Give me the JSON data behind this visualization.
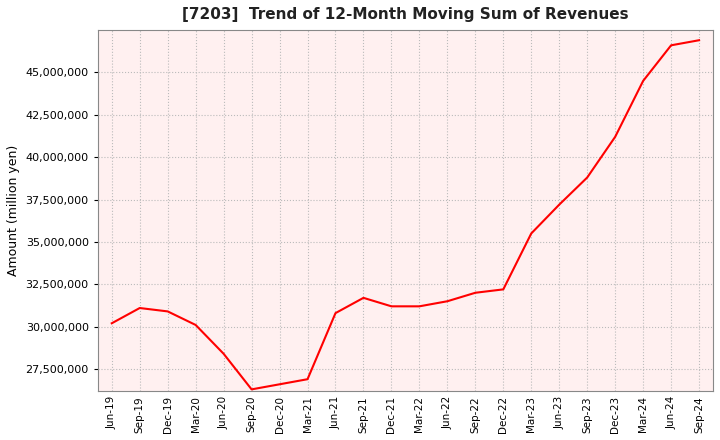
{
  "title": "[7203]  Trend of 12-Month Moving Sum of Revenues",
  "ylabel": "Amount (million yen)",
  "line_color": "#FF0000",
  "background_color": "#FFFFFF",
  "plot_bg_color": "#FFF0F0",
  "grid_color": "#BBBBBB",
  "ylim": [
    26200000,
    47500000
  ],
  "yticks": [
    27500000,
    30000000,
    32500000,
    35000000,
    37500000,
    40000000,
    42500000,
    45000000
  ],
  "x_labels": [
    "Jun-19",
    "Sep-19",
    "Dec-19",
    "Mar-20",
    "Jun-20",
    "Sep-20",
    "Dec-20",
    "Mar-21",
    "Jun-21",
    "Sep-21",
    "Dec-21",
    "Mar-22",
    "Jun-22",
    "Sep-22",
    "Dec-22",
    "Mar-23",
    "Jun-23",
    "Sep-23",
    "Dec-23",
    "Mar-24",
    "Jun-24",
    "Sep-24"
  ],
  "values": [
    30200000,
    31100000,
    30900000,
    30100000,
    28400000,
    26300000,
    26600000,
    26900000,
    30800000,
    31700000,
    31200000,
    31200000,
    31500000,
    32000000,
    32200000,
    35500000,
    37200000,
    38800000,
    41200000,
    44500000,
    46600000,
    46900000
  ]
}
